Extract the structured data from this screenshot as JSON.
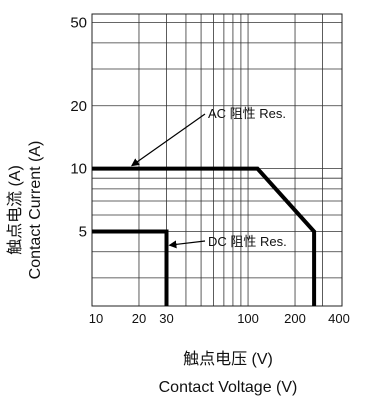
{
  "chart_data": {
    "type": "line",
    "xscale": "log",
    "yscale": "log",
    "xlim": [
      10,
      400
    ],
    "ylim": [
      2.2,
      55
    ],
    "x_ticks": [
      10,
      20,
      30,
      100,
      200,
      400
    ],
    "x_tick_labels": [
      "10",
      "20",
      "30",
      "100",
      "200",
      "400"
    ],
    "y_ticks": [
      5,
      10,
      20,
      50
    ],
    "y_tick_labels": [
      "5",
      "10",
      "20",
      "50"
    ],
    "xlabel_cn": "触点电压 (V)",
    "xlabel_en": "Contact Voltage (V)",
    "ylabel_cn": "触点电流 (A)",
    "ylabel_en": "Contact Current (A)",
    "grid": true,
    "series": [
      {
        "name": "AC 阻性 Res.",
        "x": [
          10,
          115,
          265,
          265
        ],
        "y": [
          10,
          10,
          5,
          2.2
        ]
      },
      {
        "name": "DC 阻性 Res.",
        "x": [
          10,
          30,
          30
        ],
        "y": [
          5,
          5,
          2.2
        ]
      }
    ],
    "annotations": [
      {
        "text": "AC 阻性 Res.",
        "series": 0
      },
      {
        "text": "DC 阻性 Res.",
        "series": 1
      }
    ]
  }
}
